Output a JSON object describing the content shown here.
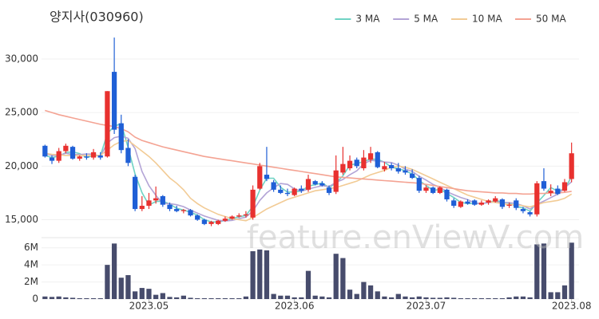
{
  "chart_data": {
    "type": "candlestick",
    "title": "양지사(030960)",
    "watermark": "feature.enViewV.com",
    "legend": "top-right",
    "grid": true,
    "up_color": "#e8312f",
    "down_color": "#1f5fd6",
    "categories": [
      null,
      null,
      null,
      null,
      null,
      null,
      null,
      null,
      null,
      null,
      null,
      null,
      null,
      null,
      null,
      "2023.05",
      null,
      null,
      null,
      null,
      null,
      null,
      null,
      null,
      null,
      null,
      null,
      null,
      null,
      null,
      null,
      null,
      null,
      null,
      null,
      null,
      "2023.06",
      null,
      null,
      null,
      null,
      null,
      null,
      null,
      null,
      null,
      null,
      null,
      null,
      null,
      null,
      null,
      null,
      null,
      null,
      "2023.07",
      null,
      null,
      null,
      null,
      null,
      null,
      null,
      null,
      null,
      null,
      null,
      null,
      null,
      null,
      null,
      null,
      null,
      null,
      null,
      null,
      "2023.08"
    ],
    "open": [
      21900,
      20800,
      20500,
      21400,
      21800,
      20700,
      20900,
      20800,
      21000,
      20900,
      28800,
      24000,
      21700,
      19000,
      16000,
      16300,
      16800,
      17200,
      16400,
      16000,
      15800,
      15900,
      15400,
      15000,
      14600,
      14600,
      14900,
      15100,
      15300,
      15400,
      15200,
      17900,
      19200,
      18500,
      17800,
      17500,
      17300,
      17900,
      17800,
      18600,
      18400,
      18000,
      17600,
      19400,
      19800,
      20600,
      19800,
      20600,
      21300,
      19700,
      20100,
      19800,
      19600,
      19300,
      18900,
      17700,
      18000,
      17500,
      17800,
      16800,
      16200,
      16700,
      16800,
      16400,
      16600,
      16700,
      16900,
      16300,
      16800,
      16000,
      15700,
      15500,
      18600,
      17500,
      17900,
      17700,
      18800
    ],
    "high": [
      22000,
      21000,
      21700,
      22100,
      21900,
      21000,
      21200,
      21600,
      21300,
      27000,
      32000,
      24800,
      22500,
      19200,
      17200,
      17500,
      18100,
      17300,
      16600,
      16300,
      16000,
      16000,
      15500,
      15100,
      14900,
      15000,
      15300,
      15400,
      15600,
      15800,
      18200,
      20300,
      21800,
      18700,
      18200,
      17900,
      18000,
      18200,
      19200,
      18700,
      18600,
      18200,
      21000,
      21800,
      21000,
      20800,
      21500,
      21800,
      21400,
      20400,
      20300,
      20300,
      20000,
      19700,
      19100,
      18200,
      18100,
      18100,
      17900,
      17000,
      16800,
      16900,
      16900,
      16800,
      16900,
      17200,
      17000,
      16600,
      17000,
      16200,
      15800,
      18600,
      19800,
      18300,
      18200,
      18800,
      22200
    ],
    "low": [
      20800,
      20200,
      20300,
      21200,
      20600,
      20500,
      20600,
      20600,
      20600,
      20800,
      23000,
      21200,
      20000,
      15800,
      15800,
      16000,
      16500,
      16200,
      15800,
      15700,
      15600,
      15300,
      14900,
      14500,
      14400,
      14500,
      14800,
      15000,
      15200,
      15200,
      15000,
      17800,
      18600,
      17600,
      17400,
      17200,
      17200,
      17500,
      17600,
      18200,
      18100,
      17300,
      17400,
      19200,
      19600,
      19800,
      19600,
      20300,
      19800,
      19500,
      19600,
      19300,
      19200,
      18800,
      17500,
      17500,
      17400,
      17400,
      16700,
      16100,
      16100,
      16400,
      16300,
      16300,
      16400,
      16600,
      16000,
      16100,
      15900,
      15600,
      15300,
      15300,
      17700,
      17200,
      17300,
      17600,
      18500
    ],
    "close": [
      20900,
      20500,
      21400,
      21900,
      20700,
      20900,
      20800,
      21300,
      20800,
      27000,
      23400,
      21500,
      20300,
      16000,
      16300,
      16800,
      17000,
      16400,
      16000,
      15800,
      15900,
      15400,
      15000,
      14600,
      14800,
      14900,
      15100,
      15300,
      15400,
      15500,
      17800,
      20000,
      18800,
      17800,
      17500,
      17400,
      17900,
      17700,
      18800,
      18300,
      18200,
      17500,
      19600,
      20200,
      20500,
      20000,
      20800,
      21200,
      19900,
      20000,
      19800,
      19500,
      19400,
      18900,
      17700,
      18000,
      17500,
      18000,
      16900,
      16300,
      16700,
      16500,
      16400,
      16600,
      16800,
      17000,
      16200,
      16400,
      16100,
      15800,
      15500,
      18400,
      17900,
      17700,
      17400,
      18500,
      21200
    ],
    "ylim": [
      13400,
      32900
    ],
    "yticks": [
      {
        "value": 15000,
        "label": "15,000"
      },
      {
        "value": 20000,
        "label": "20,000"
      },
      {
        "value": 25000,
        "label": "25,000"
      },
      {
        "value": 30000,
        "label": "30,000"
      }
    ],
    "series": [
      {
        "name": "3 MA",
        "color": "#6fd3c4",
        "values": [
          21000,
          20800,
          20933,
          21267,
          21333,
          21167,
          20800,
          21000,
          20967,
          23033,
          23733,
          23967,
          21733,
          19267,
          17533,
          16367,
          16700,
          16733,
          16467,
          16067,
          15900,
          15700,
          15433,
          15000,
          14800,
          14767,
          14933,
          15100,
          15267,
          15400,
          16233,
          17767,
          18867,
          18867,
          18033,
          17567,
          17600,
          17667,
          18133,
          18267,
          18433,
          18000,
          18433,
          19100,
          20100,
          20233,
          20433,
          20667,
          20633,
          20367,
          19900,
          19767,
          19567,
          19267,
          18667,
          18200,
          17733,
          17833,
          17467,
          17067,
          16633,
          16500,
          16533,
          16500,
          16600,
          16800,
          16667,
          16533,
          16233,
          16100,
          15800,
          16567,
          17267,
          18000,
          17667,
          17867,
          19033
        ]
      },
      {
        "name": "5 MA",
        "color": "#b3a4d6",
        "values": [
          21200,
          21000,
          21000,
          21200,
          21080,
          21080,
          21140,
          21120,
          20900,
          22160,
          22660,
          22800,
          22600,
          21640,
          19500,
          18180,
          17280,
          16500,
          16500,
          16400,
          16220,
          15900,
          15620,
          15340,
          15140,
          14940,
          14880,
          14940,
          15100,
          15240,
          15820,
          16800,
          17500,
          17980,
          18380,
          18300,
          17880,
          17660,
          17860,
          18020,
          18180,
          18100,
          18480,
          18760,
          19200,
          19560,
          20220,
          20540,
          20480,
          20380,
          20340,
          20080,
          19720,
          19520,
          19060,
          18700,
          18300,
          18020,
          17620,
          17340,
          17080,
          16880,
          16560,
          16500,
          16600,
          16660,
          16600,
          16600,
          16500,
          16300,
          16000,
          16440,
          16740,
          17060,
          17380,
          17980,
          18540
        ]
      },
      {
        "name": "10 MA",
        "color": "#f2cb95",
        "values": [
          21200,
          21100,
          21050,
          21000,
          21000,
          21000,
          21000,
          21000,
          21000,
          21500,
          22000,
          22300,
          22400,
          21900,
          21400,
          20900,
          20300,
          19600,
          18900,
          18400,
          17800,
          17000,
          16500,
          16100,
          15800,
          15500,
          15300,
          15100,
          15000,
          14900,
          15200,
          15600,
          16000,
          16300,
          16600,
          16900,
          17100,
          17300,
          17500,
          17700,
          17800,
          17900,
          18000,
          18200,
          18400,
          18600,
          18900,
          19200,
          19400,
          19600,
          19900,
          20000,
          19900,
          19700,
          19400,
          19100,
          18800,
          18500,
          18200,
          17900,
          17600,
          17300,
          17100,
          16900,
          16700,
          16600,
          16500,
          16400,
          16400,
          16300,
          16200,
          16400,
          16600,
          16700,
          16800,
          17000,
          17400
        ]
      },
      {
        "name": "50 MA",
        "color": "#f4a393",
        "values": [
          25200,
          25000,
          24800,
          24650,
          24500,
          24350,
          24200,
          24050,
          23900,
          23800,
          23700,
          23500,
          23200,
          22700,
          22400,
          22200,
          22000,
          21800,
          21650,
          21500,
          21350,
          21200,
          21050,
          20900,
          20800,
          20700,
          20600,
          20500,
          20400,
          20300,
          20200,
          20100,
          20000,
          19900,
          19800,
          19700,
          19600,
          19500,
          19400,
          19300,
          19200,
          19100,
          19000,
          18950,
          18900,
          18850,
          18800,
          18750,
          18700,
          18650,
          18600,
          18550,
          18500,
          18450,
          18400,
          18300,
          18200,
          18100,
          18000,
          17900,
          17800,
          17700,
          17650,
          17600,
          17550,
          17500,
          17500,
          17450,
          17450,
          17400,
          17400,
          17450,
          17450,
          17500,
          17500,
          17550,
          17650
        ]
      }
    ],
    "volume": {
      "color": "#474c6c",
      "ylim": [
        0,
        7000000
      ],
      "yticks": [
        0,
        {
          "value": 2000000,
          "label": "2M"
        },
        {
          "value": 4000000,
          "label": "4M"
        },
        {
          "value": 6000000,
          "label": "6M"
        }
      ],
      "values": [
        300000,
        250000,
        300000,
        200000,
        150000,
        100000,
        100000,
        100000,
        100000,
        4000000,
        6500000,
        2500000,
        2800000,
        900000,
        1300000,
        1200000,
        500000,
        700000,
        250000,
        200000,
        400000,
        150000,
        100000,
        100000,
        100000,
        100000,
        100000,
        100000,
        100000,
        300000,
        5600000,
        5800000,
        5700000,
        600000,
        400000,
        400000,
        200000,
        200000,
        3300000,
        400000,
        300000,
        200000,
        5300000,
        4800000,
        1100000,
        600000,
        2000000,
        1600000,
        900000,
        300000,
        200000,
        600000,
        300000,
        200000,
        300000,
        200000,
        150000,
        150000,
        200000,
        150000,
        100000,
        100000,
        100000,
        100000,
        100000,
        100000,
        100000,
        200000,
        300000,
        300000,
        200000,
        6400000,
        6500000,
        800000,
        800000,
        1600000,
        6600000
      ]
    }
  }
}
